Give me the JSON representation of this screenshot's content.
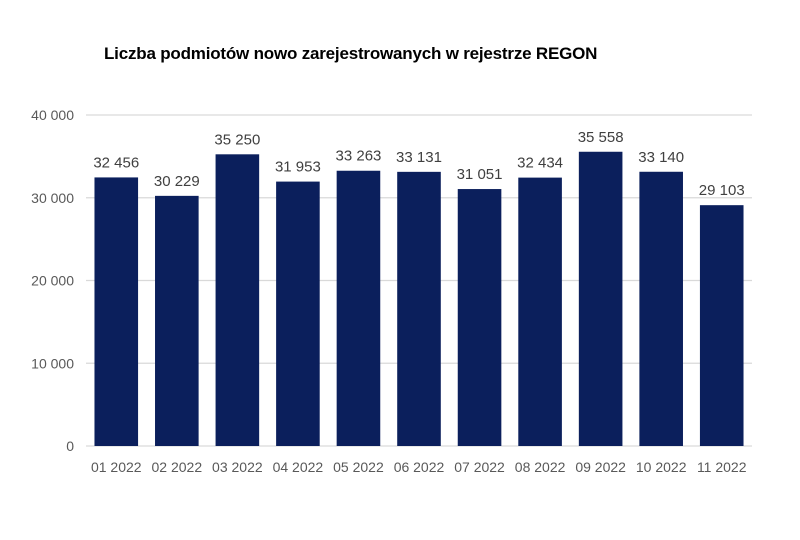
{
  "chart_data": {
    "type": "bar",
    "title": "Liczba podmiotów nowo zarejestrowanych w rejestrze REGON",
    "xlabel": "",
    "ylabel": "",
    "categories": [
      "01 2022",
      "02 2022",
      "03 2022",
      "04 2022",
      "05 2022",
      "06 2022",
      "07 2022",
      "08 2022",
      "09 2022",
      "10 2022",
      "11 2022"
    ],
    "values": [
      32456,
      30229,
      35250,
      31953,
      33263,
      33131,
      31051,
      32434,
      35558,
      33140,
      29103
    ],
    "data_labels": [
      "32 456",
      "30 229",
      "35 250",
      "31 953",
      "33 263",
      "33 131",
      "31 051",
      "32 434",
      "35 558",
      "33 140",
      "29 103"
    ],
    "ylim": [
      0,
      40000
    ],
    "yticks": [
      0,
      10000,
      20000,
      30000,
      40000
    ],
    "ytick_labels": [
      "0",
      "10 000",
      "20 000",
      "30 000",
      "40 000"
    ],
    "grid": true,
    "legend": "none",
    "colors": {
      "bar": "#0b1f5c",
      "grid": "#d9d9d9",
      "axis_text": "#595959",
      "label_text": "#404040"
    }
  }
}
